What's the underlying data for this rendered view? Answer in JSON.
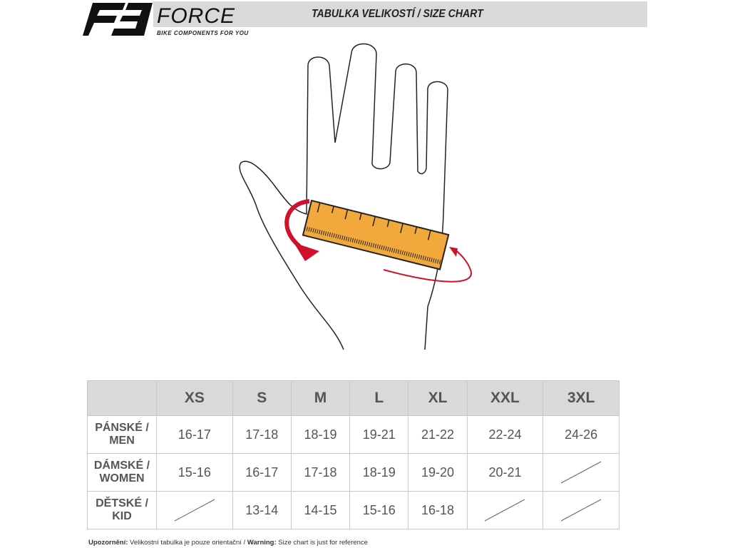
{
  "logo": {
    "brand": "FORCE",
    "tagline": "BIKE COMPONENTS FOR YOU"
  },
  "header": {
    "title": "TABULKA VELIKOSTÍ / SIZE CHART"
  },
  "colors": {
    "ruler": "#f2a93b",
    "arrow": "#d0112b",
    "header_bg": "#d9d9d9"
  },
  "table": {
    "columns": [
      "XS",
      "S",
      "M",
      "L",
      "XL",
      "XXL",
      "3XL"
    ],
    "rows": [
      {
        "label_1": "PÁNSKÉ /",
        "label_2": "MEN",
        "values": [
          "16-17",
          "17-18",
          "18-19",
          "19-21",
          "21-22",
          "22-24",
          "24-26"
        ]
      },
      {
        "label_1": "DÁMSKÉ /",
        "label_2": "WOMEN",
        "values": [
          "15-16",
          "16-17",
          "17-18",
          "18-19",
          "19-20",
          "20-21",
          null
        ]
      },
      {
        "label_1": "DĚTSKÉ /",
        "label_2": "KID",
        "values": [
          null,
          "13-14",
          "14-15",
          "15-16",
          "16-18",
          null,
          null
        ]
      }
    ]
  },
  "footer": {
    "warn_cz_label": "Upozornění:",
    "warn_cz": " Velikostní tabulka je pouze orientační / ",
    "warn_en_label": "Warning:",
    "warn_en": " Size chart is just for reference"
  }
}
